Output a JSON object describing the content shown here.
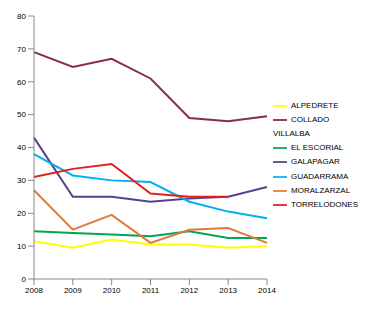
{
  "chart_data": {
    "type": "line",
    "categories": [
      "2008",
      "2009",
      "2010",
      "2011",
      "2012",
      "2013",
      "2014"
    ],
    "series": [
      {
        "name": "ALPEDRETE",
        "color": "#ffff00",
        "values": [
          11.5,
          9.5,
          12,
          10.5,
          10.5,
          9.5,
          10
        ]
      },
      {
        "name": "COLLADO VILLALBA",
        "color": "#8b2c3c",
        "values": [
          69,
          64.5,
          67,
          61,
          49,
          48,
          49.5
        ]
      },
      {
        "name": "EL ESCORIAL",
        "color": "#00a651",
        "values": [
          14.5,
          14,
          13.5,
          13,
          14.5,
          12.5,
          12.5
        ]
      },
      {
        "name": "GALAPAGAR",
        "color": "#5b3f8c",
        "values": [
          43,
          25,
          25,
          23.5,
          24.5,
          25,
          28
        ]
      },
      {
        "name": "GUADARRAMA",
        "color": "#00b0f0",
        "values": [
          38,
          31.5,
          30,
          29.5,
          23.5,
          20.5,
          18.5
        ]
      },
      {
        "name": "MORALZARZAL",
        "color": "#e07b39",
        "values": [
          27,
          15,
          19.5,
          11,
          15,
          15.5,
          11
        ]
      },
      {
        "name": "TORRELODONES",
        "color": "#e02020",
        "values": [
          31,
          33.5,
          35,
          26,
          25,
          25,
          null
        ]
      }
    ],
    "ylim": [
      0,
      80
    ],
    "yticks": [
      0,
      10,
      20,
      30,
      40,
      50,
      60,
      70,
      80
    ],
    "grid": false,
    "legend": "right"
  }
}
